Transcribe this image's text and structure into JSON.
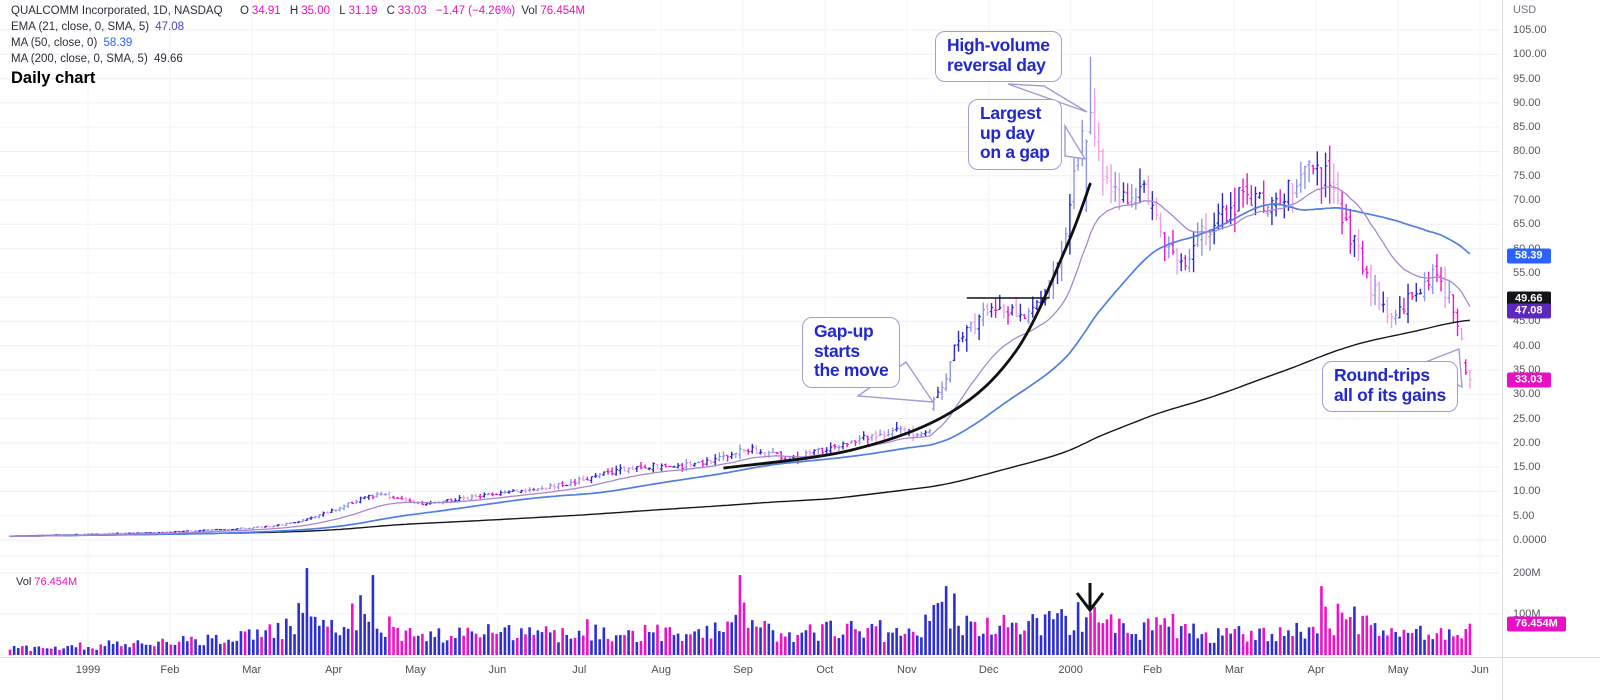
{
  "legend": {
    "symbol": "QUALCOMM Incorporated, 1D, NASDAQ",
    "o_label": "O",
    "o": "34.91",
    "h_label": "H",
    "h": "35.00",
    "l_label": "L",
    "l": "31.19",
    "c_label": "C",
    "c": "33.03",
    "change": "−1.47 (−4.26%)",
    "vol_label": "Vol",
    "vol": "76.454M",
    "ema_label": "EMA (21, close, 0, SMA, 5)",
    "ema_value": "47.08",
    "ma50_label": "MA (50, close, 0)",
    "ma50_value": "58.39",
    "ma200_label": "MA (200, close, 0, SMA, 5)",
    "ma200_value": "49.66",
    "subtitle": "Daily chart"
  },
  "axis": {
    "currency": "USD",
    "price_ticks": [
      "105.00",
      "100.00",
      "95.00",
      "90.00",
      "85.00",
      "80.00",
      "75.00",
      "70.00",
      "65.00",
      "60.00",
      "55.00",
      "50.00",
      "45.00",
      "40.00",
      "35.00",
      "30.00",
      "25.00",
      "20.00",
      "15.00",
      "10.00",
      "5.00",
      "0.0000"
    ],
    "volume_ticks": [
      {
        "label": "200M",
        "value": 200
      },
      {
        "label": "100M",
        "value": 100
      }
    ],
    "time_labels": [
      "1999",
      "Feb",
      "Mar",
      "Apr",
      "May",
      "Jun",
      "Jul",
      "Aug",
      "Sep",
      "Oct",
      "Nov",
      "Dec",
      "2000",
      "Feb",
      "Mar",
      "Apr",
      "May",
      "Jun"
    ]
  },
  "badges": [
    {
      "label": "58.39",
      "price": 58.39,
      "bg": "#2962ff"
    },
    {
      "label": "49.66",
      "price": 49.66,
      "bg": "#121418"
    },
    {
      "label": "47.08",
      "price": 47.08,
      "bg": "#5d28c0"
    },
    {
      "label": "33.03",
      "price": 33.03,
      "bg": "#e90fc5"
    }
  ],
  "volume_badge": {
    "label": "76.454M",
    "value": 76.454,
    "bg": "#e90fc5"
  },
  "vol_pane": {
    "prefix": "Vol",
    "value": "76.454M"
  },
  "annotations": [
    {
      "id": "high-volume-reversal",
      "lines": [
        "High-volume",
        "reversal day"
      ]
    },
    {
      "id": "largest-up-day",
      "lines": [
        "Largest",
        "up day",
        "on a gap"
      ]
    },
    {
      "id": "gap-up",
      "lines": [
        "Gap-up",
        "starts",
        "the move"
      ]
    },
    {
      "id": "round-trip",
      "lines": [
        "Round-trips",
        "all of its gains"
      ]
    }
  ],
  "colors": {
    "up_dark": "#2a28cf",
    "up_light": "#8d95e8",
    "down_dark": "#e718c8",
    "down_light": "#f2a0e6",
    "vol_up": "#2d2fd4",
    "vol_down": "#f011c7",
    "ema21": "#a888cd",
    "ma50": "#4f7fe3",
    "ma200": "#15171c",
    "drawing": "#111111",
    "grid_h": "#eef0f5",
    "grid_v": "#f3f4f8",
    "magenta_text": "#ec0fbe"
  },
  "chart_data": {
    "type": "candlestick",
    "title": "QUALCOMM Incorporated daily chart, Jan 1999 – Jun 2000, with EMA(21), MA(50), MA(200) and volume",
    "x_range": "Jan 1999 to Jun 2000, daily bars",
    "price_axis": {
      "unit": "USD",
      "min": 0,
      "max": 107
    },
    "volume_axis": {
      "unit": "shares",
      "ticks_M": [
        100,
        200
      ],
      "max_M": 230
    },
    "last_bar": {
      "open": 34.91,
      "high": 35.0,
      "low": 31.19,
      "close": 33.03,
      "change": -1.47,
      "change_pct": -4.26,
      "volume_M": 76.454
    },
    "indicators": [
      {
        "name": "EMA (21, close, 0, SMA, 5)",
        "last_value": 47.08
      },
      {
        "name": "MA (50, close, 0)",
        "last_value": 58.39
      },
      {
        "name": "MA (200, close, 0, SMA, 5)",
        "last_value": 49.66
      }
    ],
    "weekly_closes": [
      0.8,
      0.9,
      1.0,
      1.1,
      1.2,
      1.3,
      1.4,
      1.5,
      1.7,
      1.9,
      2.1,
      2.3,
      2.6,
      3.0,
      3.8,
      5.2,
      6.6,
      8.4,
      9.6,
      8.2,
      7.3,
      7.9,
      8.6,
      9.2,
      9.9,
      10.3,
      10.7,
      11.6,
      12.7,
      13.8,
      14.6,
      15.3,
      14.6,
      15.6,
      16.6,
      17.8,
      18.6,
      17.5,
      16.9,
      17.8,
      19.4,
      20.6,
      21.8,
      22.6,
      21.4,
      30.0,
      41.0,
      46.0,
      48.5,
      45.0,
      49.0,
      58.0,
      86.0,
      75.0,
      69.5,
      72.5,
      62.0,
      56.0,
      64.0,
      68.0,
      71.5,
      67.5,
      72.0,
      76.0,
      74.0,
      63.0,
      52.0,
      46.0,
      50.0,
      55.0,
      48.0,
      34.0
    ],
    "weekly_volumes_M": [
      16,
      18,
      20,
      22,
      24,
      28,
      26,
      30,
      33,
      38,
      42,
      46,
      52,
      58,
      105,
      90,
      80,
      115,
      85,
      60,
      55,
      50,
      55,
      55,
      60,
      50,
      55,
      60,
      72,
      55,
      60,
      55,
      60,
      50,
      55,
      92,
      70,
      60,
      55,
      60,
      72,
      60,
      65,
      60,
      68,
      110,
      90,
      80,
      75,
      70,
      80,
      90,
      100,
      80,
      70,
      65,
      80,
      60,
      55,
      60,
      55,
      60,
      55,
      65,
      88,
      100,
      70,
      60,
      55,
      60,
      65,
      80
    ],
    "key_bars": {
      "221": [
        21.6,
        22.3,
        21.2,
        21.9
      ],
      "222": [
        21.9,
        22.6,
        21.4,
        22.2
      ],
      "223": [
        22.2,
        22.9,
        21.8,
        22.5
      ],
      "224": [
        27.0,
        29.5,
        26.6,
        29.0
      ],
      "261": [
        68.0,
        82.5,
        67.5,
        82.0
      ],
      "262": [
        84.0,
        99.5,
        83.5,
        88.0
      ],
      "263": [
        88.0,
        93.0,
        81.0,
        83.0
      ],
      "264": [
        82.0,
        86.0,
        78.0,
        80.0
      ],
      "353": [
        36.5,
        37.2,
        34.0,
        34.5
      ],
      "354": [
        34.91,
        35.0,
        31.19,
        33.03
      ]
    },
    "light_bars": [
      261,
      262
    ],
    "volume_spikes_M": {
      "72": [
        212,
        "b"
      ],
      "88": [
        195,
        "b"
      ],
      "177": [
        195,
        "m"
      ],
      "178": [
        128,
        "m"
      ],
      "224": [
        122,
        "b"
      ],
      "227": [
        168,
        "b"
      ],
      "229": [
        150,
        "b"
      ],
      "261": [
        92,
        "b"
      ],
      "262": [
        104,
        "m"
      ],
      "282": [
        100,
        "m"
      ],
      "318": [
        168,
        "m"
      ],
      "319": [
        118,
        "m"
      ],
      "354": [
        76.454,
        "m"
      ]
    },
    "events": [
      {
        "day": 224,
        "label": "Gap-up starts the move"
      },
      {
        "day": 261,
        "label": "Largest up day on a gap"
      },
      {
        "day": 262,
        "label": "High-volume reversal day"
      },
      {
        "day": 350,
        "label": "Round-trips all of its gains"
      }
    ],
    "drawn_resistance_line": {
      "price": 49.8,
      "from_day": 232,
      "to_day": 252
    },
    "parabolic_curve_points_day_price": [
      [
        173,
        14.8
      ],
      [
        204,
        18.5
      ],
      [
        228,
        26.2
      ],
      [
        244,
        39.0
      ],
      [
        256,
        60.0
      ],
      [
        262,
        73.5
      ]
    ]
  }
}
